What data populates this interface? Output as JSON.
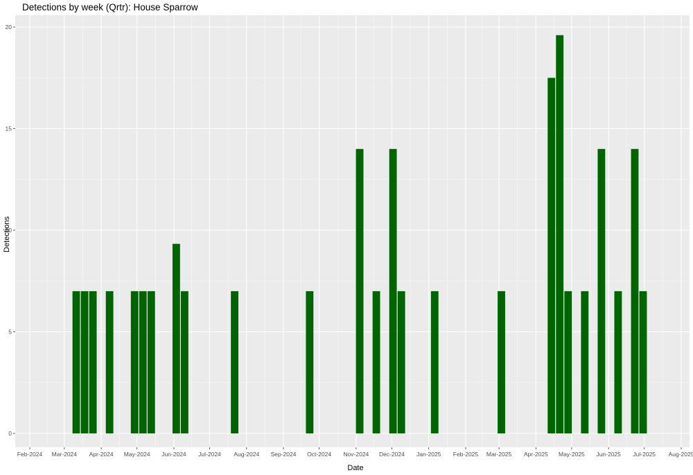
{
  "chart_data": {
    "type": "bar",
    "title": "Detections by week (Qrtr): House Sparrow",
    "xlabel": "Date",
    "ylabel": "Detections",
    "ylim": [
      -0.8,
      20.6
    ],
    "yticks": [
      0,
      5,
      10,
      15,
      20
    ],
    "xlim": [
      "2024-01-29",
      "2024-08-05"
    ],
    "xticks": [
      "2024-02-01",
      "2024-03-01",
      "2024-04-01",
      "2024-05-01",
      "2024-06-01",
      "2024-07-01",
      "2024-08-01",
      "2024-09-01",
      "2024-10-01",
      "2024-11-01",
      "2024-12-01",
      "2025-01-01",
      "2025-02-01",
      "2025-03-01",
      "2025-04-01",
      "2025-05-01",
      "2025-06-01",
      "2025-07-01",
      "2025-08-01"
    ],
    "xtick_labels": [
      "Feb-2024",
      "Mar-2024",
      "Apr-2024",
      "May-2024",
      "Jun-2024",
      "Jul-2024",
      "Aug-2024",
      "Sep-2024",
      "Oct-2024",
      "Nov-2024",
      "Dec-2024",
      "Jan-2025",
      "Feb-2025",
      "Mar-2025",
      "Apr-2025",
      "May-2025",
      "Jun-2025",
      "Jul-2025",
      "Aug-2025"
    ],
    "grid": true,
    "bar_color": "#006400",
    "panel_color": "#ebebeb",
    "weeks": [
      "2024-03-11",
      "2024-03-18",
      "2024-03-25",
      "2024-04-08",
      "2024-04-29",
      "2024-05-06",
      "2024-05-13",
      "2024-06-03",
      "2024-06-10",
      "2024-07-22",
      "2024-09-23",
      "2024-11-04",
      "2024-11-18",
      "2024-12-02",
      "2024-12-09",
      "2025-01-06",
      "2025-03-03",
      "2025-04-14",
      "2025-04-21",
      "2025-04-28",
      "2025-05-12",
      "2025-05-26",
      "2025-06-09",
      "2025-06-23",
      "2025-06-30"
    ],
    "values": [
      7,
      7,
      7,
      7,
      7,
      7,
      7,
      9.33,
      7,
      7,
      7,
      14,
      7,
      14,
      7,
      7,
      7,
      17.5,
      19.6,
      7,
      7,
      14,
      7,
      14,
      7
    ]
  }
}
